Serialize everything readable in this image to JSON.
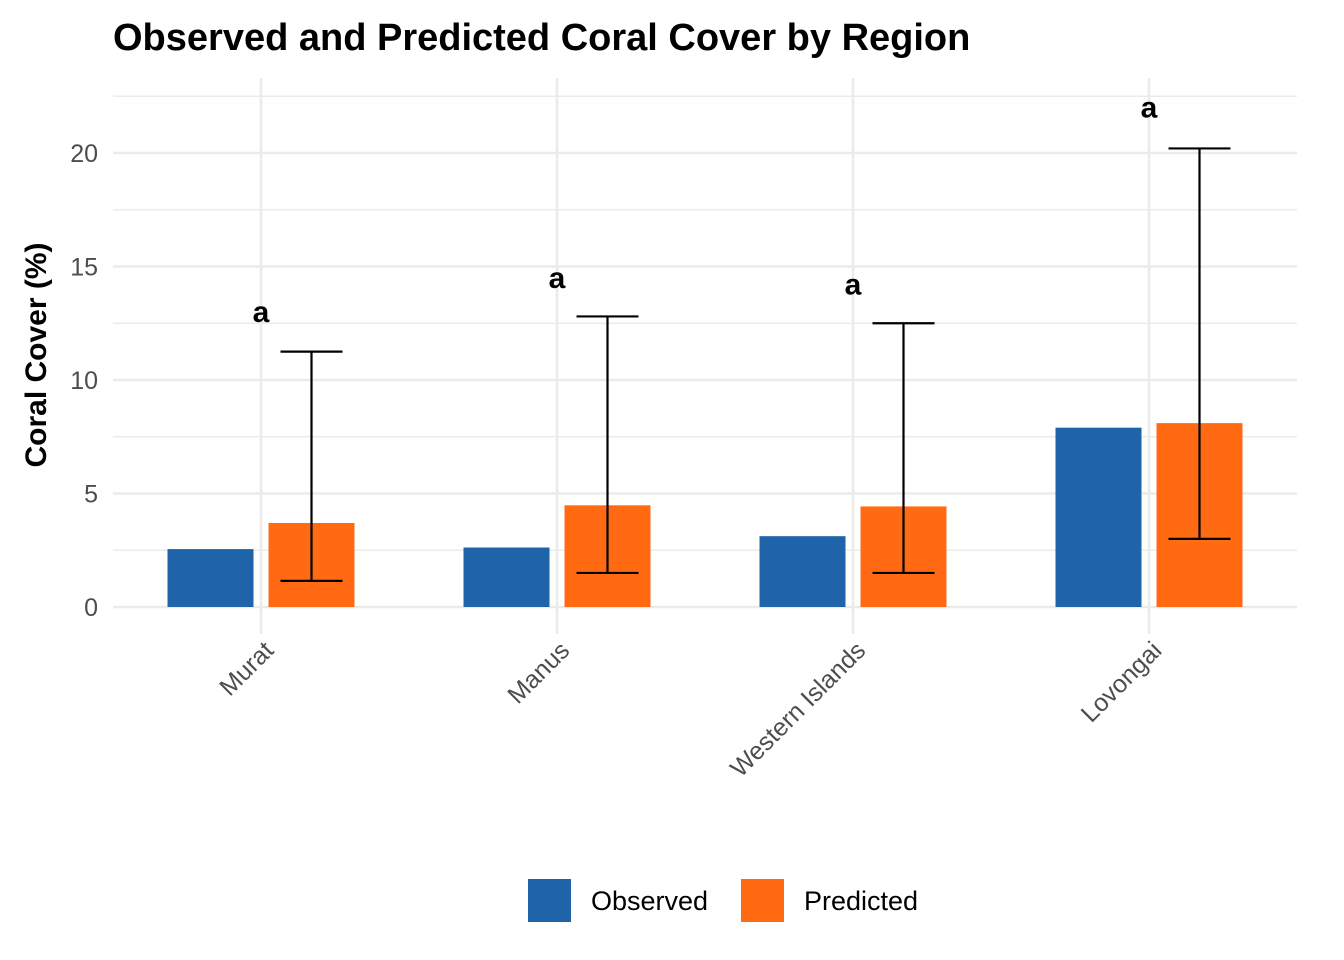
{
  "chart_data": {
    "type": "bar",
    "title": "Observed and Predicted Coral Cover by Region",
    "xlabel": "",
    "ylabel": "Coral Cover (%)",
    "ylim": [
      -1.2,
      23.1
    ],
    "yticks": [
      0,
      5,
      10,
      15,
      20
    ],
    "categories": [
      "Murat",
      "Manus",
      "Western Islands",
      "Lovongai"
    ],
    "series": [
      {
        "name": "Observed",
        "color": "#1f63a8",
        "values": [
          2.55,
          2.62,
          3.12,
          7.9
        ]
      },
      {
        "name": "Predicted",
        "color": "#ff6a13",
        "values": [
          3.7,
          4.48,
          4.43,
          8.1
        ],
        "error_low": [
          1.15,
          1.5,
          1.5,
          3.0
        ],
        "error_high": [
          11.25,
          12.8,
          12.5,
          20.2
        ]
      }
    ],
    "annotations": [
      "a",
      "a",
      "a",
      "a"
    ],
    "annotation_y": [
      13.0,
      14.5,
      14.2,
      22.0
    ],
    "grid": true,
    "legend_position": "bottom"
  }
}
